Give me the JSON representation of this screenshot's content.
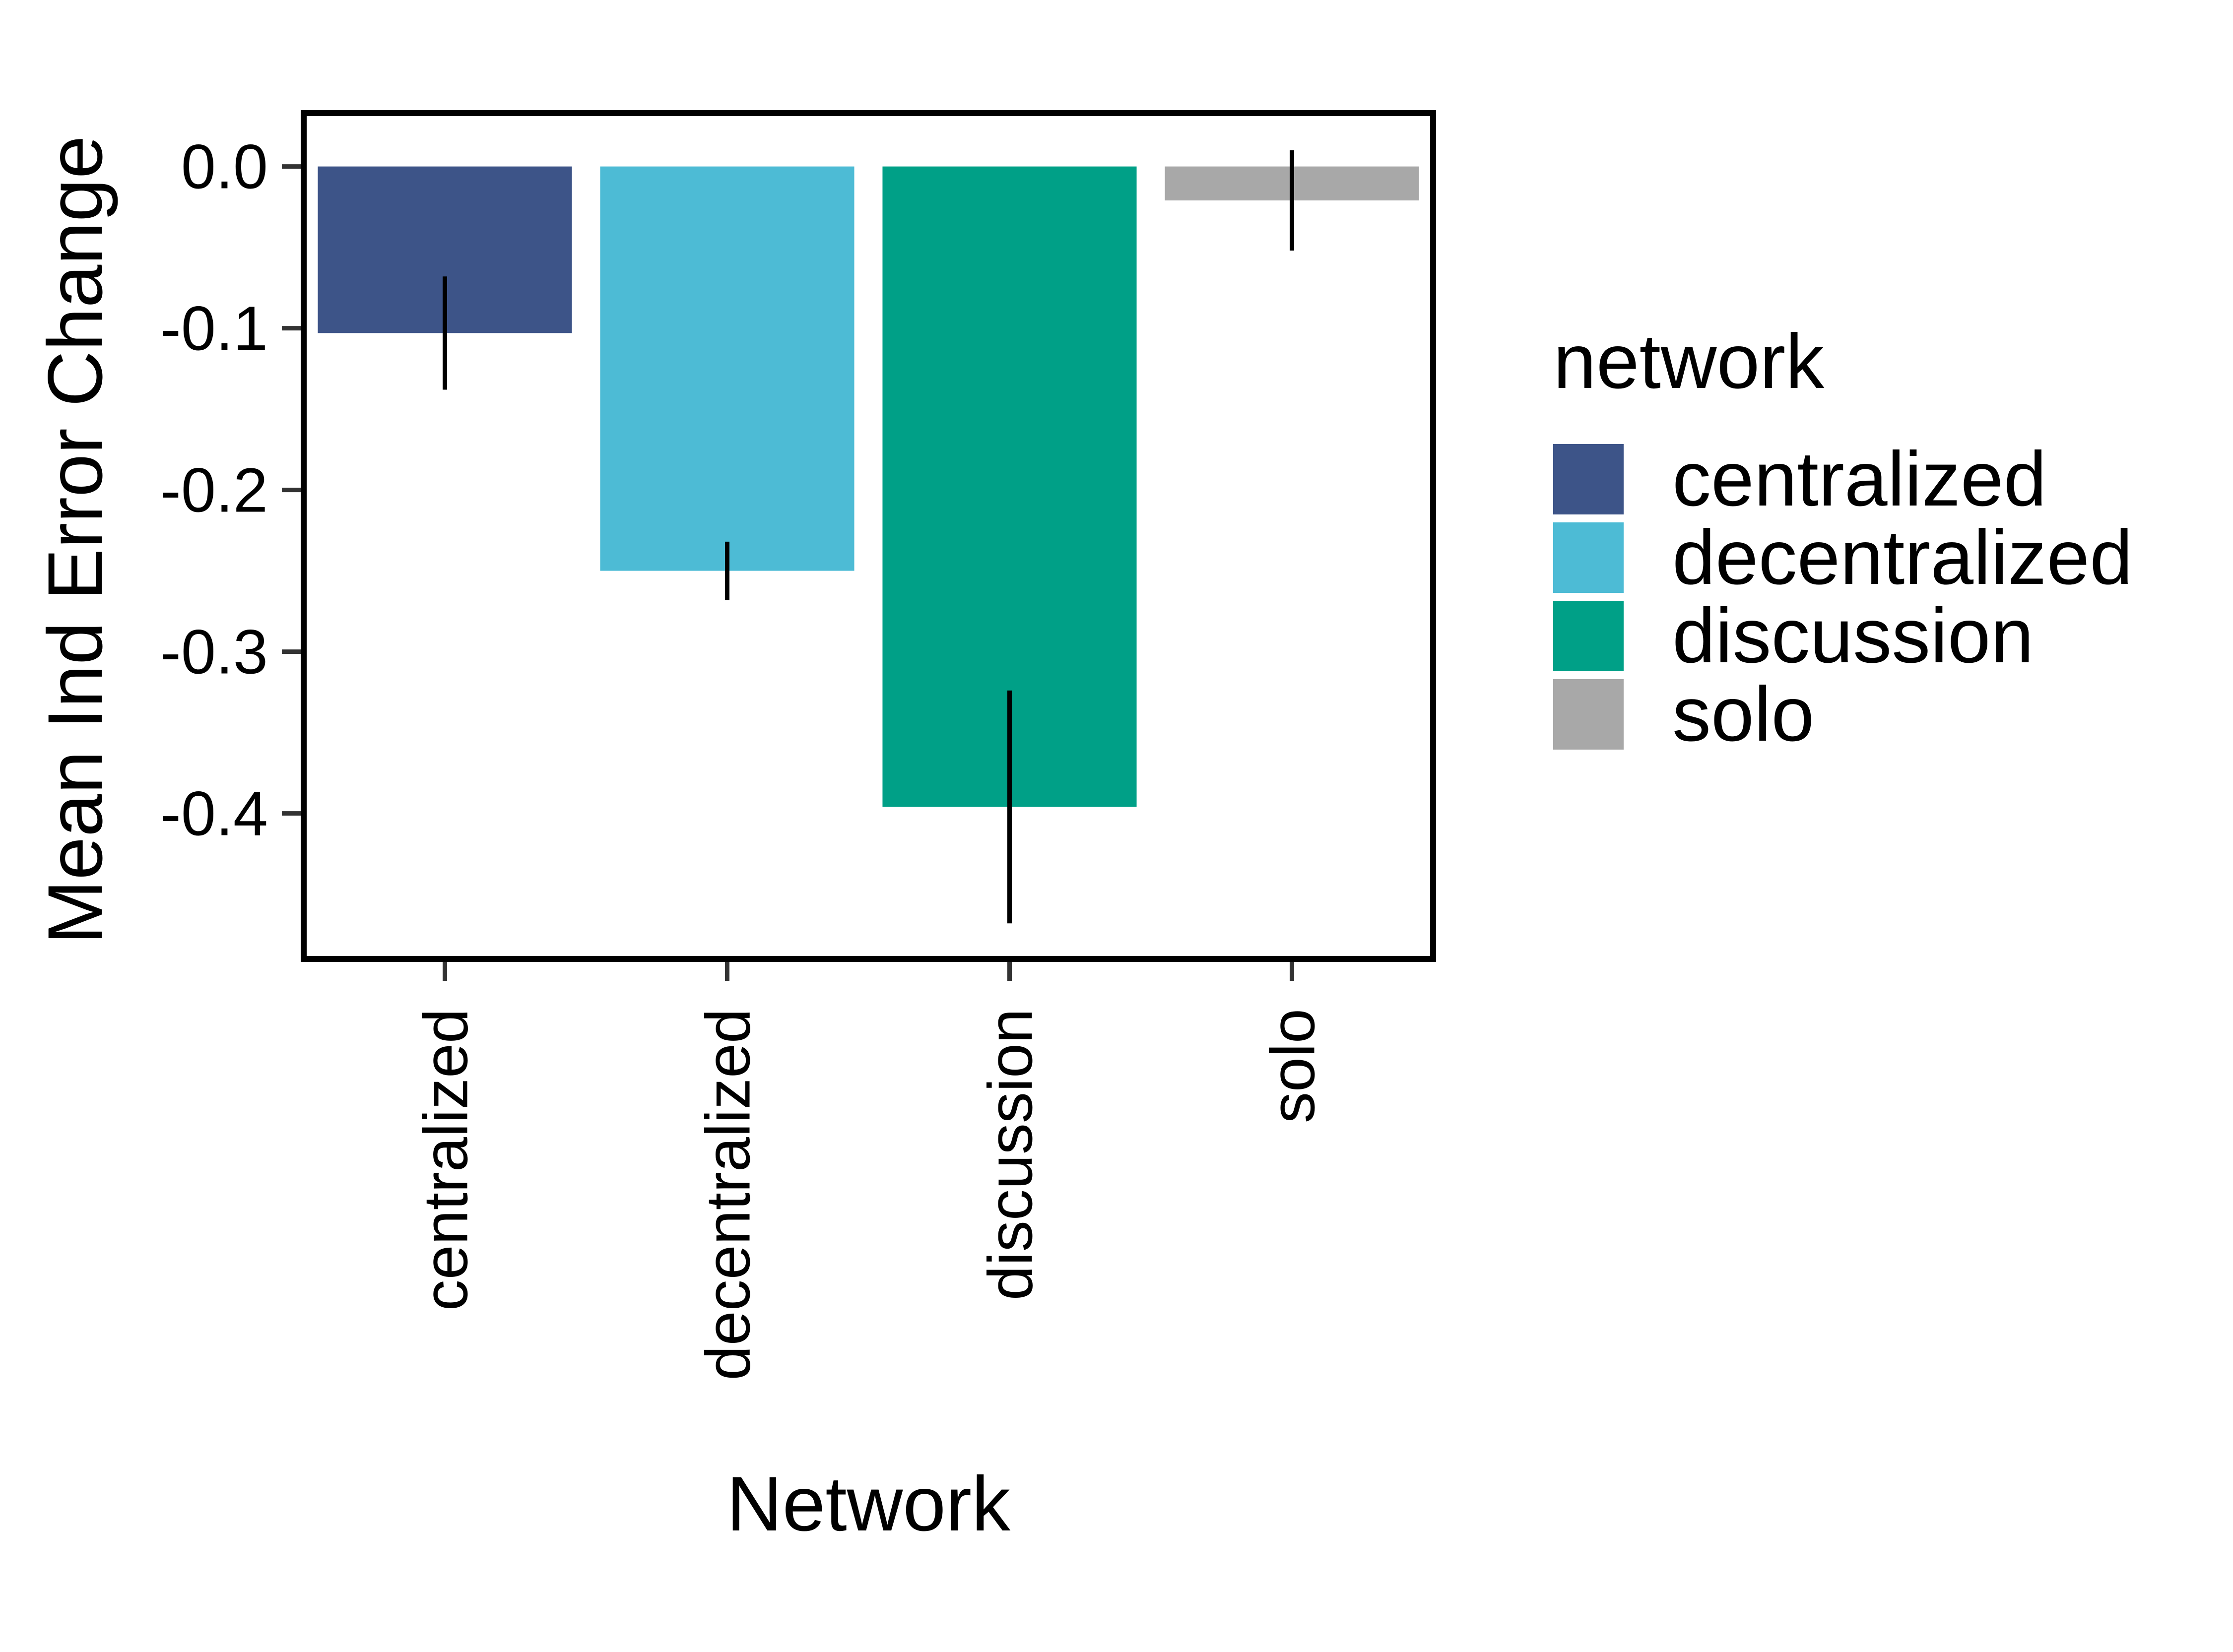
{
  "chart_data": {
    "type": "bar",
    "categories": [
      "centralized",
      "decentralized",
      "discussion",
      "solo"
    ],
    "values": [
      -0.103,
      -0.25,
      -0.396,
      -0.021
    ],
    "error_bars": [
      {
        "low": -0.138,
        "high": -0.068
      },
      {
        "low": -0.268,
        "high": -0.232
      },
      {
        "low": -0.468,
        "high": -0.324
      },
      {
        "low": -0.052,
        "high": 0.01
      }
    ],
    "colors": [
      "#3D5488",
      "#4DBBD5",
      "#00A087",
      "#A8A8A8"
    ],
    "xlabel": "Network",
    "ylabel": "Mean Ind Error Change",
    "ylim": [
      -0.49,
      0.033
    ],
    "yticks": [
      0.0,
      -0.1,
      -0.2,
      -0.3,
      -0.4
    ],
    "ytick_labels": [
      "0.0",
      "-0.1",
      "-0.2",
      "-0.3",
      "-0.4"
    ],
    "grid": false,
    "legend": {
      "title": "network",
      "position": "right",
      "entries": [
        "centralized",
        "decentralized",
        "discussion",
        "solo"
      ]
    }
  }
}
